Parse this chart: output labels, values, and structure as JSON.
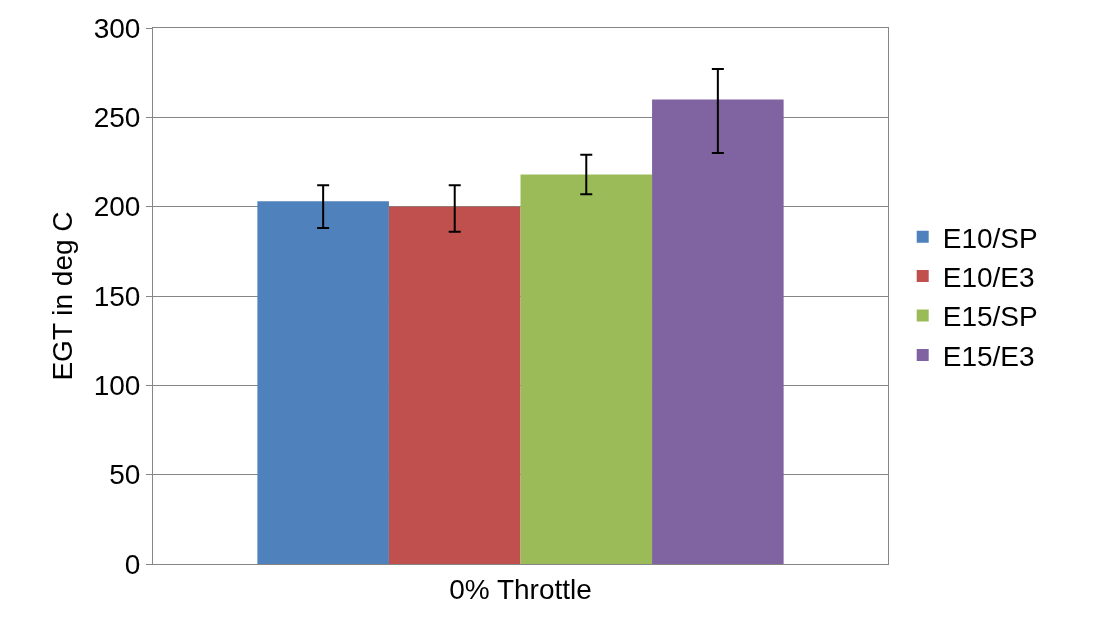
{
  "chart_data": {
    "type": "bar",
    "categories": [
      "0% Throttle"
    ],
    "ylabel": "EGT in deg C",
    "ylim": [
      0,
      300
    ],
    "yticks": [
      0,
      50,
      100,
      150,
      200,
      250,
      300
    ],
    "grid": "y",
    "legend": "right",
    "series": [
      {
        "name": "E10/SP",
        "color": "#4f81bd",
        "values": [
          203
        ],
        "errors": [
          [
            188,
            212
          ]
        ]
      },
      {
        "name": "E10/E3",
        "color": "#c0504d",
        "values": [
          200
        ],
        "errors": [
          [
            186,
            212
          ]
        ]
      },
      {
        "name": "E15/SP",
        "color": "#9bbb59",
        "values": [
          218
        ],
        "errors": [
          [
            207,
            229
          ]
        ]
      },
      {
        "name": "E15/E3",
        "color": "#8064a2",
        "values": [
          260
        ],
        "errors": [
          [
            230,
            277
          ]
        ]
      }
    ]
  }
}
